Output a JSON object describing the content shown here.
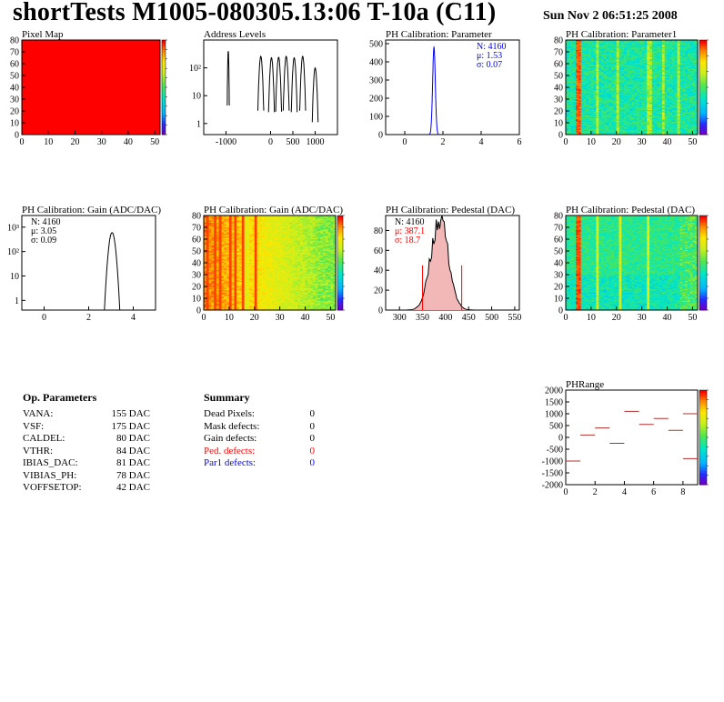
{
  "header": {
    "title": "shortTests M1005-080305.13:06 T-10a (C11)",
    "timestamp": "Sun Nov  2 06:51:25 2008"
  },
  "colors": {
    "hist_line": "#000000",
    "fit_blue": "#0000ff",
    "fit_red": "#ff0000",
    "pixel_map_fill": "#ff0000"
  },
  "chart_data": [
    {
      "id": "pixel-map",
      "type": "heatmap",
      "title": "Pixel Map",
      "x_ticks": [
        "0",
        "10",
        "20",
        "30",
        "40",
        "50"
      ],
      "y_ticks": [
        "0",
        "10",
        "20",
        "30",
        "40",
        "50",
        "60",
        "70",
        "80"
      ],
      "xlim": [
        0,
        52
      ],
      "ylim": [
        0,
        80
      ],
      "uniform_value": 10,
      "colorbar_range": [
        0,
        10
      ]
    },
    {
      "id": "address-levels",
      "type": "line",
      "title": "Address Levels",
      "x_ticks": [
        "-1000",
        "0",
        "500",
        "1000"
      ],
      "y_ticks": [
        "1",
        "10",
        "10²"
      ],
      "xlim": [
        -1500,
        1500
      ],
      "log_y": true,
      "peaks": [
        {
          "center": -950,
          "height": 400
        },
        {
          "center": -220,
          "height": 260
        },
        {
          "center": 20,
          "height": 230
        },
        {
          "center": 180,
          "height": 240
        },
        {
          "center": 350,
          "height": 260
        },
        {
          "center": 530,
          "height": 230
        },
        {
          "center": 720,
          "height": 260
        },
        {
          "center": 1000,
          "height": 100
        }
      ]
    },
    {
      "id": "ph-param-hist",
      "type": "line",
      "title": "PH Calibration: Parameter",
      "x_ticks": [
        "0",
        "2",
        "4",
        "6"
      ],
      "y_ticks": [
        "0",
        "100",
        "200",
        "300",
        "400",
        "500"
      ],
      "xlim": [
        -1,
        6
      ],
      "ylim": [
        0,
        520
      ],
      "stats": {
        "n": "N: 4160",
        "mu": "μ: 1.53",
        "sigma": "σ: 0.07"
      },
      "mean": 1.53,
      "sigma": 0.07,
      "peak": 480
    },
    {
      "id": "ph-param1-map",
      "type": "heatmap",
      "title": "PH Calibration: Parameter1",
      "x_ticks": [
        "0",
        "10",
        "20",
        "30",
        "40",
        "50"
      ],
      "y_ticks": [
        "0",
        "10",
        "20",
        "30",
        "40",
        "50",
        "60",
        "70",
        "80"
      ],
      "xlim": [
        0,
        52
      ],
      "ylim": [
        0,
        80
      ]
    },
    {
      "id": "ph-gain-hist",
      "type": "line",
      "title": "PH Calibration: Gain (ADC/DAC)",
      "x_ticks": [
        "0",
        "2",
        "4"
      ],
      "y_ticks": [
        "1",
        "10",
        "10²",
        "10³"
      ],
      "xlim": [
        -1,
        5
      ],
      "log_y": true,
      "stats": {
        "n": "N: 4160",
        "mu": "μ: 3.05",
        "sigma": "σ: 0.09"
      },
      "mean": 3.05,
      "sigma": 0.09,
      "peak": 600
    },
    {
      "id": "ph-gain-map",
      "type": "heatmap",
      "title": "PH Calibration: Gain (ADC/DAC)",
      "x_ticks": [
        "0",
        "10",
        "20",
        "30",
        "40",
        "50"
      ],
      "y_ticks": [
        "0",
        "10",
        "20",
        "30",
        "40",
        "50",
        "60",
        "70",
        "80"
      ],
      "xlim": [
        0,
        52
      ],
      "ylim": [
        0,
        80
      ]
    },
    {
      "id": "ph-pedestal-hist",
      "type": "line",
      "title": "PH Calibration: Pedestal (DAC)",
      "x_ticks": [
        "300",
        "350",
        "400",
        "450",
        "500",
        "550"
      ],
      "y_ticks": [
        "0",
        "20",
        "40",
        "60",
        "80"
      ],
      "xlim": [
        270,
        560
      ],
      "ylim": [
        0,
        95
      ],
      "stats": {
        "n": "N: 4160",
        "mu": "μ: 387.1",
        "sigma": "σ: 18.7"
      },
      "mean": 387.1,
      "sigma": 18.7,
      "peak": 92,
      "cut_lines": [
        350,
        435
      ]
    },
    {
      "id": "ph-pedestal-map",
      "type": "heatmap",
      "title": "PH Calibration: Pedestal (DAC)",
      "x_ticks": [
        "0",
        "10",
        "20",
        "30",
        "40",
        "50"
      ],
      "y_ticks": [
        "0",
        "10",
        "20",
        "30",
        "40",
        "50",
        "60",
        "70",
        "80"
      ],
      "xlim": [
        0,
        52
      ],
      "ylim": [
        0,
        80
      ]
    },
    {
      "id": "ph-range",
      "type": "scatter",
      "title": "PHRange",
      "x_ticks": [
        "0",
        "2",
        "4",
        "6",
        "8"
      ],
      "y_ticks": [
        "2000",
        "1500",
        "1000",
        "500",
        "0",
        "-500",
        "-1000",
        "-1500",
        "-2000"
      ],
      "xlim": [
        0,
        9
      ],
      "ylim": [
        -2000,
        2000
      ],
      "points": [
        {
          "x": 0,
          "y": -1000
        },
        {
          "x": 1,
          "y": 100
        },
        {
          "x": 2,
          "y": 400
        },
        {
          "x": 3,
          "y": -250
        },
        {
          "x": 4,
          "y": 1100
        },
        {
          "x": 5,
          "y": 550
        },
        {
          "x": 6,
          "y": 800
        },
        {
          "x": 7,
          "y": 300
        },
        {
          "x": 8,
          "y": 1000
        },
        {
          "x": 8,
          "y": -900
        }
      ]
    }
  ],
  "op_params": {
    "header": "Op. Parameters",
    "rows": [
      {
        "label": "VANA:",
        "value": "155 DAC"
      },
      {
        "label": "VSF:",
        "value": "175 DAC"
      },
      {
        "label": "CALDEL:",
        "value": "80 DAC"
      },
      {
        "label": "VTHR:",
        "value": "84 DAC"
      },
      {
        "label": "IBIAS_DAC:",
        "value": "81 DAC"
      },
      {
        "label": "VIBIAS_PH:",
        "value": "78 DAC"
      },
      {
        "label": "VOFFSETOP:",
        "value": "42 DAC"
      }
    ]
  },
  "summary": {
    "header": "Summary",
    "rows": [
      {
        "label": "Dead Pixels:",
        "value": "0",
        "color": "#000000"
      },
      {
        "label": "Mask defects:",
        "value": "0",
        "color": "#000000"
      },
      {
        "label": "Gain defects:",
        "value": "0",
        "color": "#000000"
      },
      {
        "label": "Ped. defects:",
        "value": "0",
        "color": "#ff0000"
      },
      {
        "label": "Par1 defects:",
        "value": "0",
        "color": "#0000ff"
      }
    ]
  }
}
